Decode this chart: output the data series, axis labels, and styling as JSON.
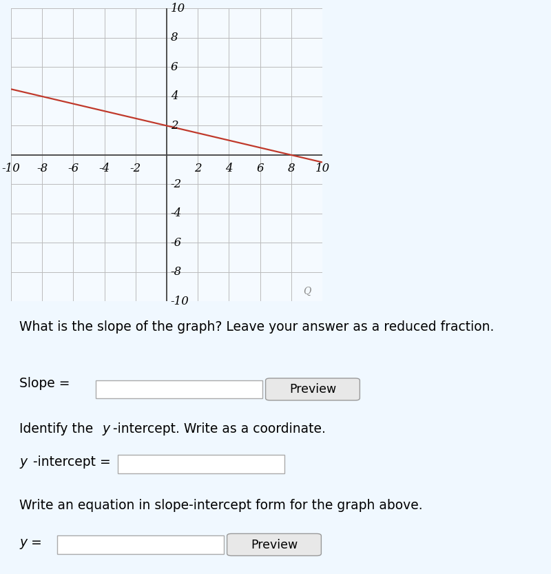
{
  "xlim": [
    -10,
    10
  ],
  "ylim": [
    -10,
    10
  ],
  "xticks": [
    -10,
    -8,
    -6,
    -4,
    -2,
    2,
    4,
    6,
    8,
    10
  ],
  "yticks": [
    -10,
    -8,
    -6,
    -4,
    -2,
    2,
    4,
    6,
    8,
    10
  ],
  "line_x": [
    -10,
    10
  ],
  "line_y": [
    4.5,
    -0.5
  ],
  "line_color": "#c0392b",
  "line_width": 1.6,
  "page_bg_color": "#f0f8ff",
  "graph_bg_color": "#f5faff",
  "grid_color": "#bbbbbb",
  "axis_color": "#444444",
  "tick_label_fontsize": 12,
  "tick_font": "DejaVu Serif",
  "q1_text": "What is the slope of the graph? Leave your answer as a reduced fraction.",
  "q2_text_a": "Identify the ",
  "q2_text_b": "y",
  "q2_text_c": "-intercept. Write as a coordinate.",
  "q3_text": "Write an equation in slope-intercept form for the graph above.",
  "slope_label": "Slope =",
  "yint_label_a": "y",
  "yint_label_b": "-intercept =",
  "yeq_label": "y =",
  "preview_btn": "Preview",
  "text_fontsize": 13.5,
  "label_fontsize": 13.5,
  "input_box_color": "#ffffff",
  "btn_color": "#e8e8e8",
  "btn_edge_color": "#999999",
  "magnifier_color": "#888888"
}
